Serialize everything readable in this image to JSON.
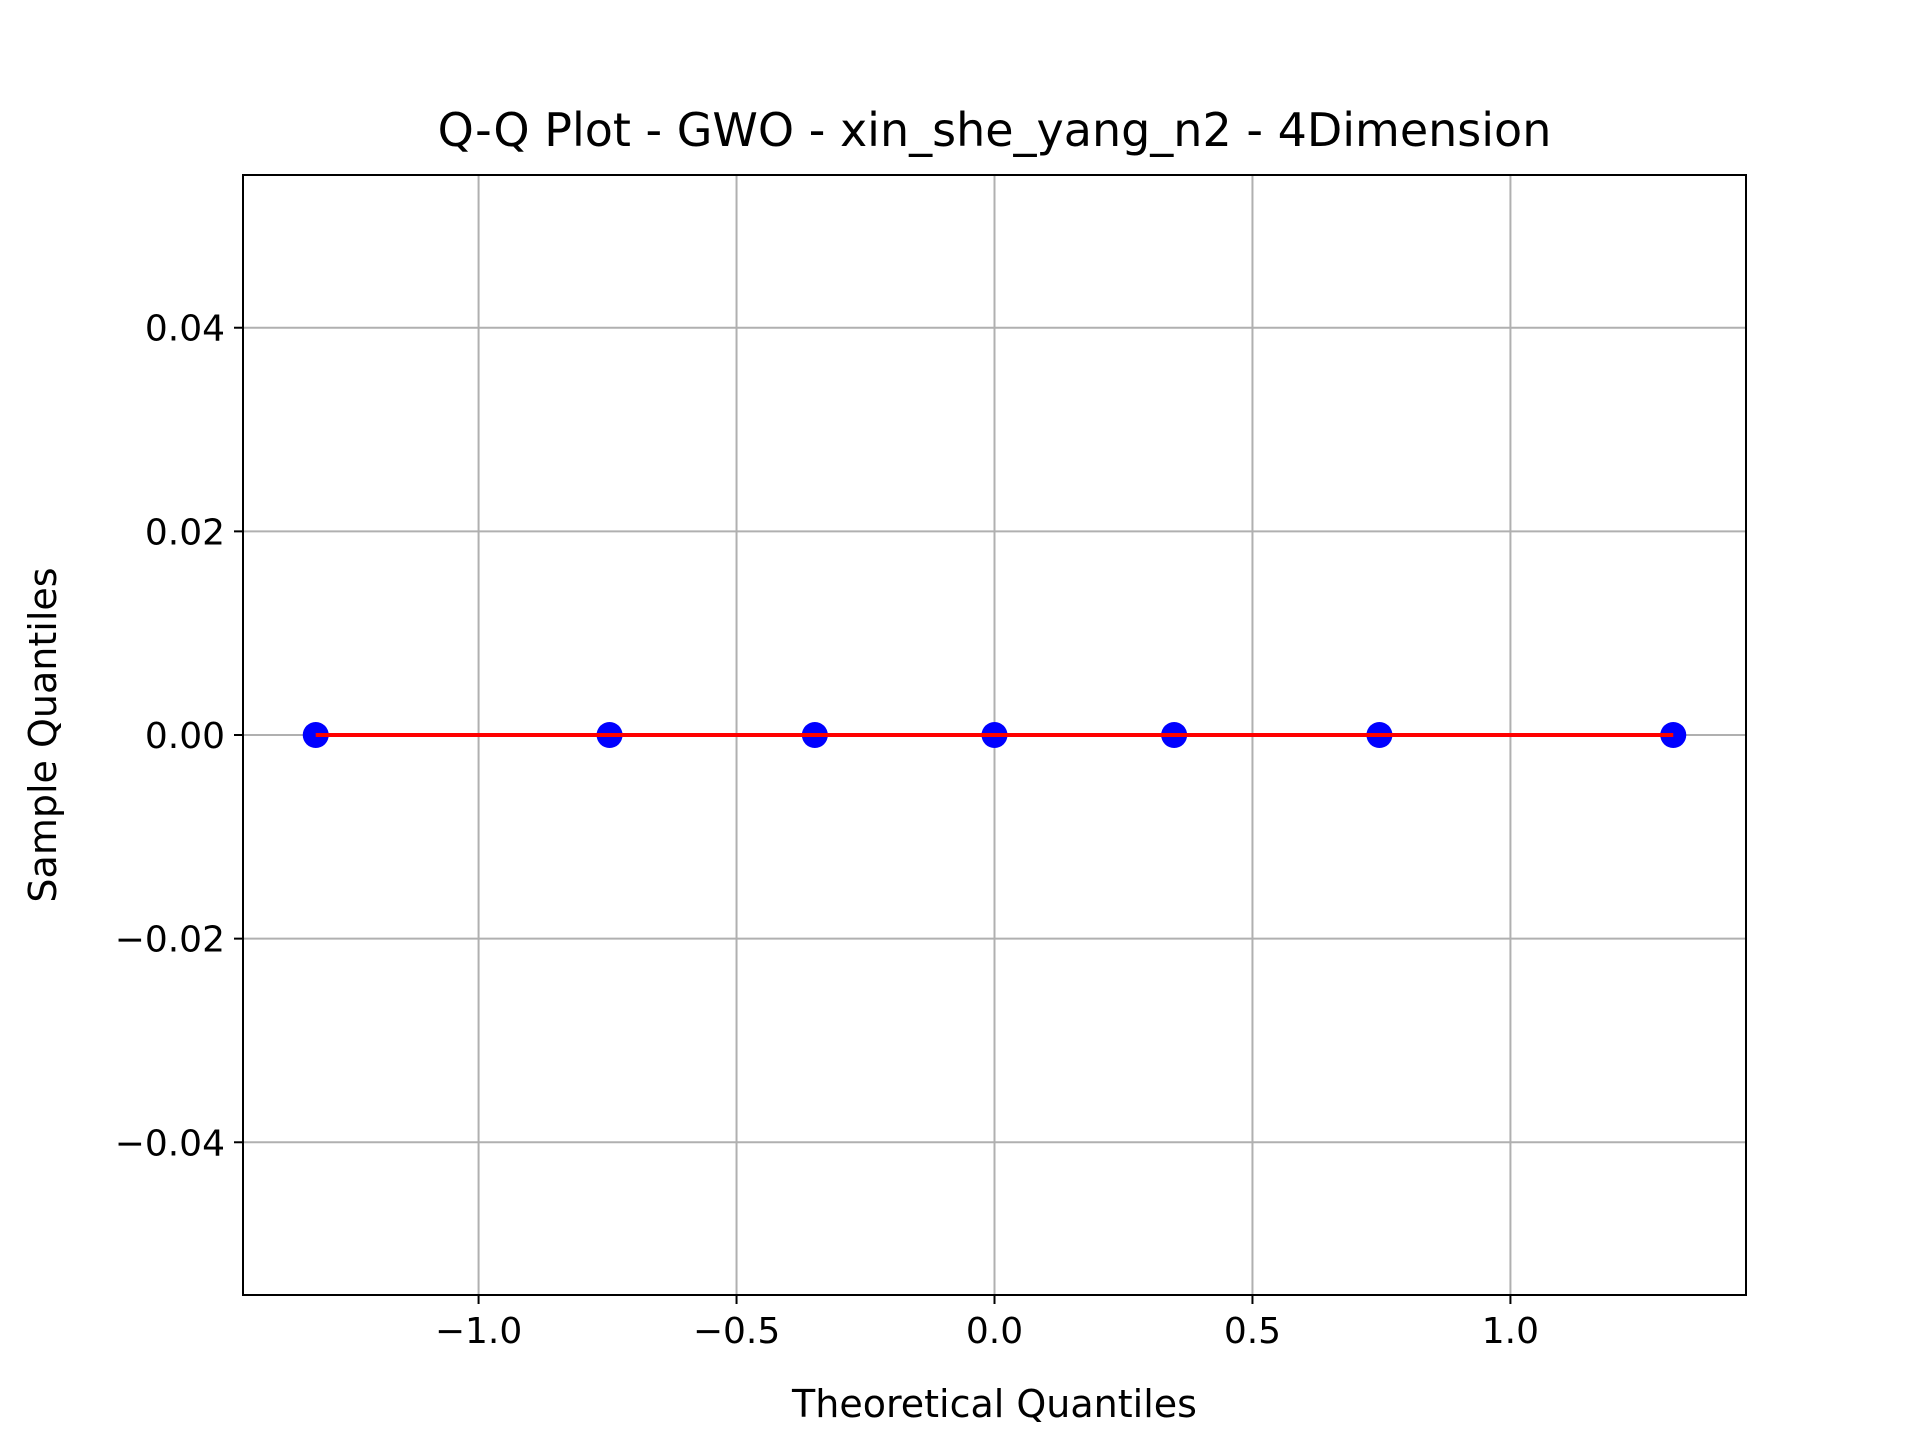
{
  "chart_data": {
    "type": "scatter",
    "title": "Q-Q Plot - GWO - xin_she_yang_n2 - 4Dimension",
    "xlabel": "Theoretical Quantiles",
    "ylabel": "Sample Quantiles",
    "xlim": [
      -1.4566,
      1.4566
    ],
    "ylim": [
      -0.055,
      0.055
    ],
    "xticks": [
      -1.0,
      -0.5,
      0.0,
      0.5,
      1.0
    ],
    "xtick_labels": [
      "−1.0",
      "−0.5",
      "0.0",
      "0.5",
      "1.0"
    ],
    "yticks": [
      0.04,
      0.02,
      0.0,
      -0.02,
      -0.04
    ],
    "ytick_labels": [
      "0.04",
      "0.02",
      "0.00",
      "−0.02",
      "−0.04"
    ],
    "grid": true,
    "series": [
      {
        "type": "scatter",
        "x": [
          -1.3156,
          -0.7461,
          -0.3482,
          0.0,
          0.3482,
          0.7461,
          1.3156
        ],
        "y": [
          0.0,
          0.0,
          0.0,
          0.0,
          0.0,
          0.0,
          0.0
        ],
        "color": "#0000ff"
      },
      {
        "type": "line",
        "x": [
          -1.3156,
          1.3156
        ],
        "y": [
          0.0,
          0.0
        ],
        "color": "#ff0000"
      }
    ],
    "colors": {
      "grid": "#b0b0b0",
      "axes": "#000000",
      "points": "#0000ff",
      "reference_line": "#ff0000"
    }
  }
}
